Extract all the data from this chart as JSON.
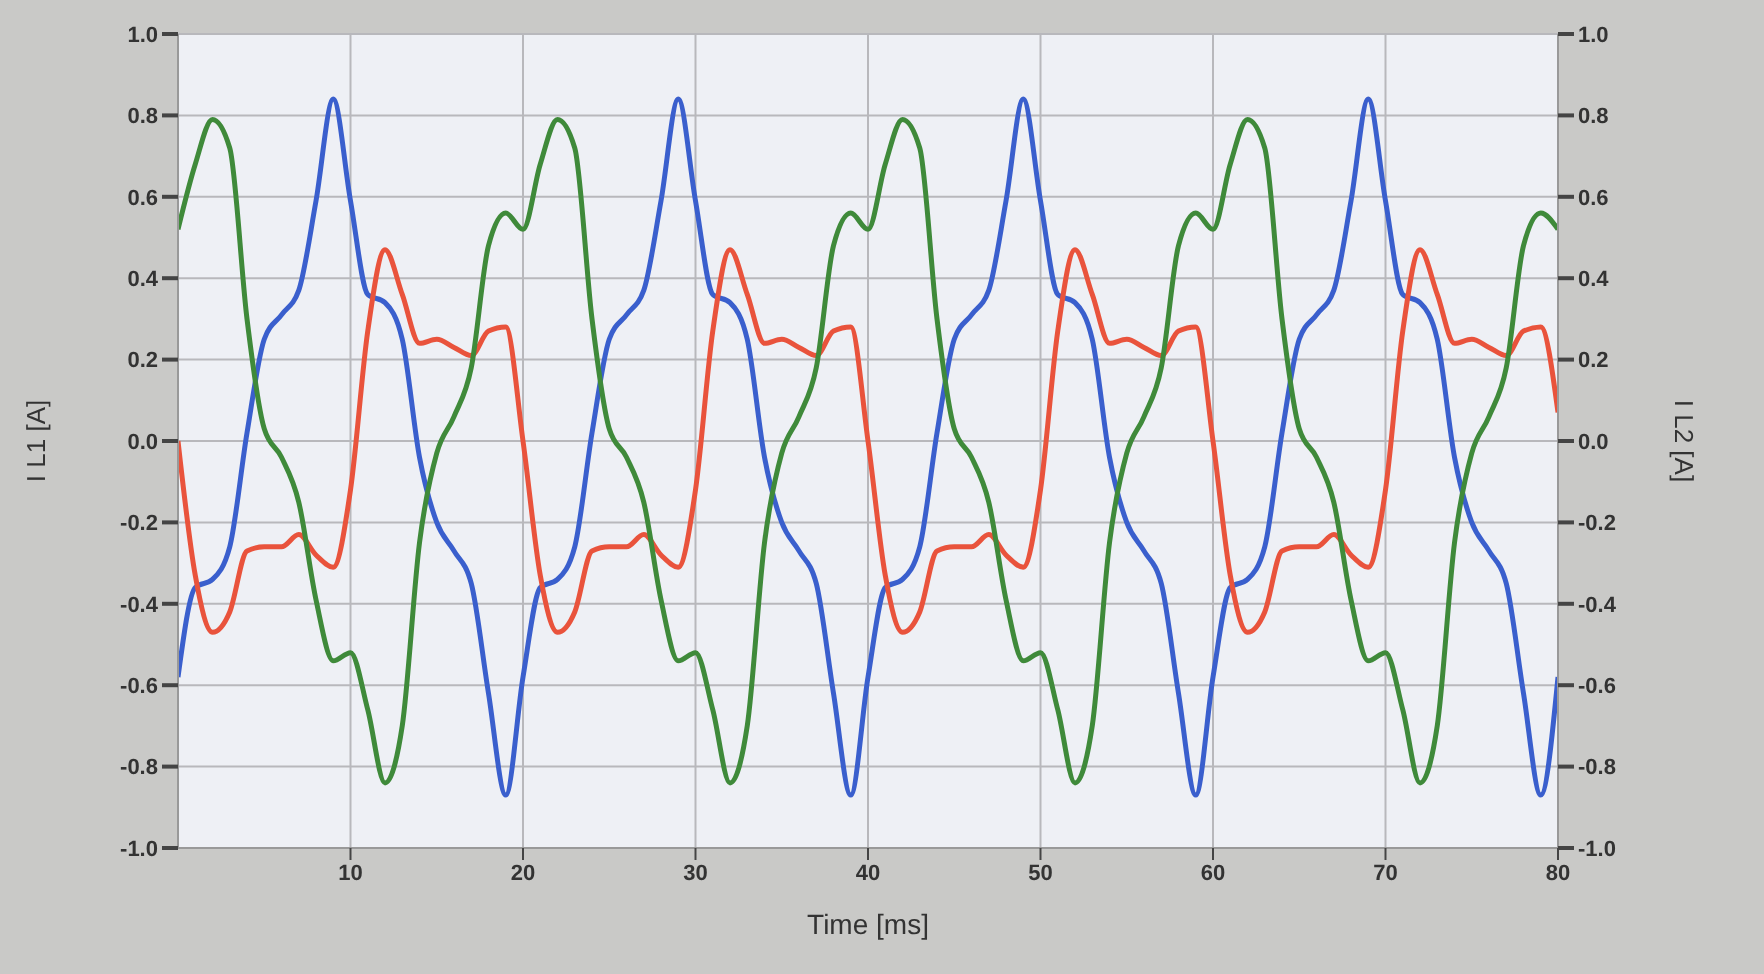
{
  "chart_data": {
    "type": "line",
    "xlabel": "Time [ms]",
    "ylabel": "I L1 [A]",
    "y2label": "I L2 [A]",
    "x": [
      0,
      1,
      2,
      3,
      4,
      5,
      6,
      7,
      8,
      9,
      10,
      11,
      12,
      13,
      14,
      15,
      16,
      17,
      18,
      19,
      20,
      21,
      22,
      23,
      24,
      25,
      26,
      27,
      28,
      29,
      30,
      31,
      32,
      33,
      34,
      35,
      36,
      37,
      38,
      39,
      40,
      41,
      42,
      43,
      44,
      45,
      46,
      47,
      48,
      49,
      50,
      51,
      52,
      53,
      54,
      55,
      56,
      57,
      58,
      59,
      60,
      61,
      62,
      63,
      64,
      65,
      66,
      67,
      68,
      69,
      70,
      71,
      72,
      73,
      74,
      75,
      76,
      77,
      78,
      79,
      80
    ],
    "series": [
      {
        "color": "#3a5fcd",
        "values": [
          -0.58,
          -0.36,
          -0.34,
          -0.26,
          0.02,
          0.25,
          0.31,
          0.37,
          0.59,
          0.84,
          0.59,
          0.36,
          0.34,
          0.25,
          -0.04,
          -0.2,
          -0.27,
          -0.35,
          -0.62,
          -0.87,
          -0.58,
          -0.36,
          -0.34,
          -0.26,
          0.02,
          0.25,
          0.31,
          0.37,
          0.59,
          0.84,
          0.59,
          0.36,
          0.34,
          0.25,
          -0.04,
          -0.2,
          -0.27,
          -0.35,
          -0.62,
          -0.87,
          -0.58,
          -0.36,
          -0.34,
          -0.26,
          0.02,
          0.25,
          0.31,
          0.37,
          0.59,
          0.84,
          0.59,
          0.36,
          0.34,
          0.25,
          -0.04,
          -0.2,
          -0.27,
          -0.35,
          -0.62,
          -0.87,
          -0.58,
          -0.36,
          -0.34,
          -0.26,
          0.02,
          0.25,
          0.31,
          0.37,
          0.59,
          0.84,
          0.59,
          0.36,
          0.34,
          0.25,
          -0.04,
          -0.2,
          -0.27,
          -0.35,
          -0.62,
          -0.87,
          -0.58
        ]
      },
      {
        "color": "#e9533c",
        "values": [
          0.0,
          -0.33,
          -0.47,
          -0.42,
          -0.27,
          -0.26,
          -0.26,
          -0.23,
          -0.28,
          -0.31,
          -0.12,
          0.27,
          0.47,
          0.36,
          0.24,
          0.25,
          0.23,
          0.21,
          0.27,
          0.28,
          0.0,
          -0.33,
          -0.47,
          -0.42,
          -0.27,
          -0.26,
          -0.26,
          -0.23,
          -0.28,
          -0.31,
          -0.12,
          0.27,
          0.47,
          0.36,
          0.24,
          0.25,
          0.23,
          0.21,
          0.27,
          0.28,
          0.0,
          -0.33,
          -0.47,
          -0.42,
          -0.27,
          -0.26,
          -0.26,
          -0.23,
          -0.28,
          -0.31,
          -0.12,
          0.27,
          0.47,
          0.36,
          0.24,
          0.25,
          0.23,
          0.21,
          0.27,
          0.28,
          0.0,
          -0.33,
          -0.47,
          -0.42,
          -0.27,
          -0.26,
          -0.26,
          -0.23,
          -0.28,
          -0.31,
          -0.12,
          0.27,
          0.47,
          0.36,
          0.24,
          0.25,
          0.23,
          0.21,
          0.27,
          0.28,
          0.07
        ]
      },
      {
        "color": "#3f8a3a",
        "values": [
          0.52,
          0.68,
          0.79,
          0.72,
          0.3,
          0.03,
          -0.04,
          -0.15,
          -0.39,
          -0.54,
          -0.52,
          -0.66,
          -0.84,
          -0.7,
          -0.25,
          -0.03,
          0.06,
          0.18,
          0.48,
          0.56,
          0.52,
          0.68,
          0.79,
          0.72,
          0.3,
          0.03,
          -0.04,
          -0.15,
          -0.39,
          -0.54,
          -0.52,
          -0.66,
          -0.84,
          -0.7,
          -0.25,
          -0.03,
          0.06,
          0.18,
          0.48,
          0.56,
          0.52,
          0.68,
          0.79,
          0.72,
          0.3,
          0.03,
          -0.04,
          -0.15,
          -0.39,
          -0.54,
          -0.52,
          -0.66,
          -0.84,
          -0.7,
          -0.25,
          -0.03,
          0.06,
          0.18,
          0.48,
          0.56,
          0.52,
          0.68,
          0.79,
          0.72,
          0.3,
          0.03,
          -0.04,
          -0.15,
          -0.39,
          -0.54,
          -0.52,
          -0.66,
          -0.84,
          -0.7,
          -0.25,
          -0.03,
          0.06,
          0.18,
          0.48,
          0.56,
          0.52
        ]
      }
    ],
    "xlim": [
      0,
      80
    ],
    "xticks": [
      10,
      20,
      30,
      40,
      50,
      60,
      70,
      80
    ],
    "ylim": [
      -1,
      1
    ],
    "yticks": [
      {
        "value": -1,
        "label": "-1.0"
      },
      -0.8,
      -0.6,
      -0.4,
      -0.2,
      {
        "value": 0,
        "label": "0.0"
      },
      0.2,
      0.4,
      0.6,
      0.8,
      {
        "value": 1,
        "label": "1.0"
      }
    ],
    "y2lim": [
      -1,
      1
    ],
    "y2ticks": [
      {
        "value": -1,
        "label": "-1.0"
      },
      -0.8,
      -0.6,
      -0.4,
      -0.2,
      {
        "value": 0,
        "label": "0.0"
      },
      0.2,
      0.4,
      0.6,
      0.8,
      {
        "value": 1,
        "label": "1.0"
      }
    ],
    "grid": true,
    "marker": "none",
    "line_style": "solid"
  }
}
